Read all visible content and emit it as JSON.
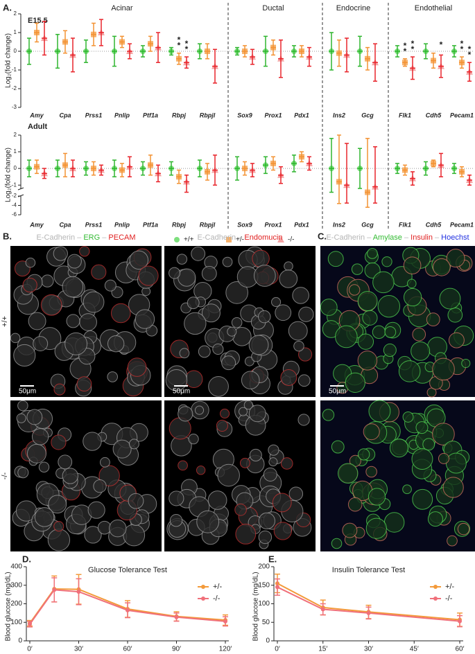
{
  "panel_labels": [
    "A.",
    "B.",
    "C.",
    "D.",
    "E."
  ],
  "chart_data": [
    {
      "type": "dot",
      "title": "E15.5",
      "ylabel": "Log₂(fold change)",
      "ylim": [
        -3,
        2
      ],
      "yticks": [
        -3,
        -2,
        -1,
        0,
        1,
        2
      ],
      "groups": [
        {
          "name": "Acinar",
          "categories": [
            "Amy",
            "Cpa",
            "Prss1",
            "Pnlip",
            "Ptf1a",
            "Rbpj",
            "Rbpjl"
          ]
        },
        {
          "name": "Ductal",
          "categories": [
            "Sox9",
            "Prox1",
            "Pdx1"
          ]
        },
        {
          "name": "Endocrine",
          "categories": [
            "Ins2",
            "Gcg"
          ]
        },
        {
          "name": "Endothelial",
          "categories": [
            "Flk1",
            "Cdh5",
            "Pecam1"
          ]
        }
      ],
      "series": [
        {
          "color": "#7ddf7d",
          "bar_color": "#2fb52f",
          "marker": "circle",
          "values": [
            0,
            0,
            0,
            0,
            0,
            0,
            0,
            0,
            0,
            0,
            0,
            0,
            0,
            0,
            0
          ],
          "errors": [
            0.7,
            0.9,
            0.6,
            0.8,
            0.3,
            0.2,
            0.4,
            0.2,
            0.8,
            0.3,
            1.0,
            0.8,
            0.3,
            0.4,
            0.3
          ]
        },
        {
          "color": "#f7b26c",
          "bar_color": "#f39233",
          "marker": "square",
          "values": [
            1.0,
            0.5,
            0.9,
            0.5,
            0.4,
            -0.4,
            0,
            0,
            0.2,
            0,
            -0.1,
            -0.4,
            -0.6,
            -0.5,
            -0.6
          ],
          "errors": [
            0.5,
            0.6,
            0.6,
            0.3,
            0.4,
            0.3,
            0.4,
            0.3,
            0.4,
            0.3,
            0.7,
            0.6,
            0.2,
            0.4,
            0.3
          ]
        },
        {
          "color": "#f4a3a3",
          "bar_color": "#e8242b",
          "marker": "triangle",
          "values": [
            0.7,
            -0.2,
            1.0,
            0,
            0.2,
            -0.6,
            -0.8,
            -0.3,
            -0.4,
            -0.3,
            -0.2,
            -0.6,
            -0.9,
            -0.8,
            -1.1
          ],
          "errors": [
            0.9,
            0.9,
            0.7,
            0.4,
            0.8,
            0.3,
            0.9,
            0.4,
            1.0,
            0.5,
            0.9,
            1.0,
            0.6,
            0.6,
            0.5
          ]
        }
      ],
      "annotations": [
        {
          "text": "**",
          "category": 5,
          "series": 1
        },
        {
          "text": "**",
          "category": 5,
          "series": 2
        },
        {
          "text": "**",
          "category": 12,
          "series": 1
        },
        {
          "text": "**",
          "category": 12,
          "series": 2
        },
        {
          "text": "*",
          "category": 13,
          "series": 2
        },
        {
          "text": "**",
          "category": 14,
          "series": 1
        },
        {
          "text": "**",
          "category": 14,
          "series": 2
        }
      ]
    },
    {
      "type": "dot",
      "title": "Adult",
      "ylabel": "Log₂(fold change)",
      "ylim": [
        -6,
        2
      ],
      "ybreak": [
        -1.2,
        -2
      ],
      "yticks": [
        -6,
        -4,
        -2,
        -1,
        0,
        1,
        2
      ],
      "groups": [
        {
          "categories": [
            "Amy",
            "Cpa",
            "Prss1",
            "Pnlip",
            "Ptf1a",
            "Rbpj",
            "Rbpjl"
          ]
        },
        {
          "categories": [
            "Sox9",
            "Prox1",
            "Pdx1"
          ]
        },
        {
          "categories": [
            "Ins2",
            "Gcg"
          ]
        },
        {
          "categories": [
            "Flk1",
            "Cdh5",
            "Pecam1"
          ]
        }
      ],
      "series": [
        {
          "name": "+/+",
          "color": "#7ddf7d",
          "bar_color": "#2fb52f",
          "marker": "circle",
          "values": [
            0,
            0,
            0,
            0,
            0,
            0,
            0,
            0,
            0.2,
            0.3,
            0,
            0,
            0,
            0,
            0
          ],
          "errors": [
            0.5,
            0.5,
            0.4,
            0.5,
            0.4,
            0.4,
            0.5,
            0.7,
            0.5,
            0.5,
            1.8,
            1.2,
            0.3,
            0.4,
            0.3
          ]
        },
        {
          "name": "+/-",
          "color": "#f7b26c",
          "bar_color": "#f39233",
          "marker": "square",
          "values": [
            0.1,
            0.2,
            0,
            -0.1,
            0.2,
            -0.5,
            -0.2,
            0,
            0.3,
            0.7,
            -0.8,
            -1.3,
            -0.1,
            0.3,
            -0.2
          ],
          "errors": [
            0.4,
            0.7,
            0.4,
            0.4,
            0.6,
            0.4,
            0.5,
            0.4,
            0.4,
            0.3,
            2.8,
            3.1,
            0.3,
            0.2,
            0.3
          ]
        },
        {
          "name": "-/-",
          "color": "#f4a3a3",
          "bar_color": "#e8242b",
          "marker": "triangle",
          "values": [
            -0.3,
            0,
            -0.1,
            0.1,
            -0.3,
            -0.8,
            -0.1,
            -0.1,
            -0.4,
            0.3,
            -1.0,
            -1.1,
            -0.6,
            0.2,
            -0.7
          ],
          "errors": [
            0.3,
            0.5,
            0.3,
            0.6,
            0.5,
            0.4,
            0.9,
            0.4,
            0.5,
            0.4,
            2.5,
            2.4,
            0.4,
            0.7,
            0.3
          ]
        }
      ]
    },
    {
      "type": "line",
      "title": "Glucose Tolerance Test",
      "ylabel": "Blood glucose (mg/dL)",
      "x": [
        0,
        15,
        30,
        60,
        90,
        120
      ],
      "xlim": [
        0,
        120
      ],
      "xticks": [
        {
          "value": 0,
          "label": "0′"
        },
        {
          "value": 30,
          "label": "30′"
        },
        {
          "value": 60,
          "label": "60′"
        },
        {
          "value": 90,
          "label": "90′"
        },
        {
          "value": 120,
          "label": "120′"
        }
      ],
      "ylim": [
        0,
        400
      ],
      "yticks": [
        0,
        100,
        200,
        300,
        400
      ],
      "series": [
        {
          "name": "+/-",
          "color": "#f39a3a",
          "values": [
            95,
            280,
            278,
            172,
            132,
            112
          ],
          "errors": [
            15,
            70,
            80,
            45,
            25,
            28
          ]
        },
        {
          "name": "-/-",
          "color": "#f0707a",
          "values": [
            90,
            275,
            265,
            165,
            128,
            105
          ],
          "errors": [
            15,
            65,
            70,
            40,
            22,
            25
          ]
        }
      ]
    },
    {
      "type": "line",
      "title": "Insulin Tolerance Test",
      "ylabel": "Blood glucose (mg/dL)",
      "x": [
        0,
        15,
        30,
        60
      ],
      "xlim": [
        0,
        60
      ],
      "xticks": [
        {
          "value": 0,
          "label": "0′"
        },
        {
          "value": 15,
          "label": "15′"
        },
        {
          "value": 30,
          "label": "30′"
        },
        {
          "value": 45,
          "label": "45′"
        },
        {
          "value": 60,
          "label": "60′"
        }
      ],
      "ylim": [
        0,
        200
      ],
      "yticks": [
        0,
        50,
        100,
        150,
        200
      ],
      "series": [
        {
          "name": "+/-",
          "color": "#f39a3a",
          "values": [
            155,
            90,
            78,
            57
          ],
          "errors": [
            25,
            20,
            18,
            18
          ]
        },
        {
          "name": "-/-",
          "color": "#f0707a",
          "values": [
            145,
            85,
            75,
            53
          ],
          "errors": [
            22,
            15,
            16,
            15
          ]
        }
      ]
    }
  ],
  "images": {
    "stains": [
      [
        {
          "text": "E-Cadherin",
          "color": "#b5b5b5"
        },
        {
          "text": " – ",
          "color": "#b5b5b5"
        },
        {
          "text": "ERG",
          "color": "#33bb33"
        },
        {
          "text": " – ",
          "color": "#b5b5b5"
        },
        {
          "text": "PECAM",
          "color": "#e02020"
        }
      ],
      [
        {
          "text": "E-Cadherin",
          "color": "#b5b5b5"
        },
        {
          "text": " – ",
          "color": "#b5b5b5"
        },
        {
          "text": "Endomucin",
          "color": "#e02020"
        }
      ],
      [
        {
          "text": "E-Cadherin",
          "color": "#b5b5b5"
        },
        {
          "text": " – ",
          "color": "#b5b5b5"
        },
        {
          "text": "Amylase",
          "color": "#33bb33"
        },
        {
          "text": " – ",
          "color": "#b5b5b5"
        },
        {
          "text": "Insulin",
          "color": "#e02020"
        },
        {
          "text": " – ",
          "color": "#b5b5b5"
        },
        {
          "text": "Hoechst",
          "color": "#2030e0"
        }
      ]
    ],
    "rows": [
      "+/+",
      "-/-"
    ],
    "scale_bar": "50μm"
  }
}
